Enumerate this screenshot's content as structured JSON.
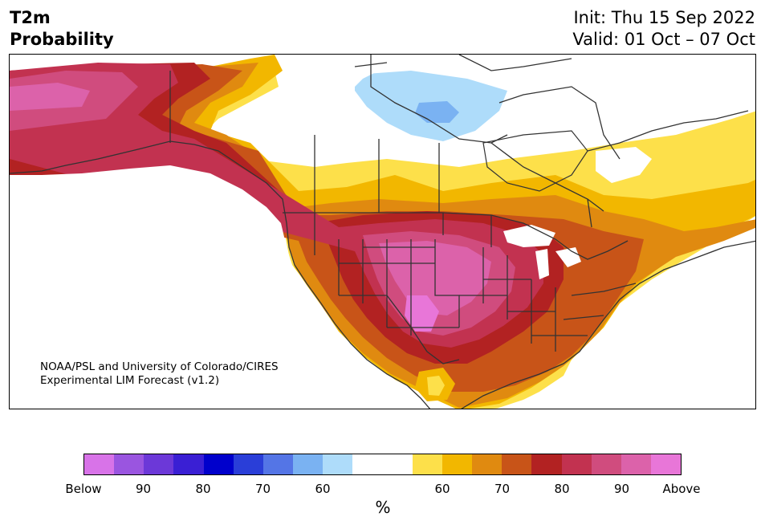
{
  "title": {
    "left_line1": "T2m",
    "left_line2": "Probability",
    "right_line1": "Init: Thu 15 Sep 2022",
    "right_line2": "Valid: 01 Oct – 07 Oct"
  },
  "credit": {
    "line1": "NOAA/PSL and University of Colorado/CIRES",
    "line2": "Experimental LIM Forecast (v1.2)"
  },
  "colorbar": {
    "label": "%",
    "colors": [
      "#d873e8",
      "#9a55e0",
      "#6c38d8",
      "#3a1fd4",
      "#0000cc",
      "#2a3ed8",
      "#5475e6",
      "#7ab2f2",
      "#aedcfa",
      "#ffffff",
      "#ffffff",
      "#fde04a",
      "#f2b700",
      "#e08a10",
      "#c85418",
      "#b22222",
      "#c23250",
      "#d04c7e",
      "#dc62aa",
      "#e876d8"
    ],
    "ticks": [
      "Below",
      "90",
      "80",
      "70",
      "60",
      "60",
      "70",
      "80",
      "90",
      "Above"
    ]
  },
  "legend_palette": {
    "white": "#ffffff",
    "light_blue": "#aedcfa",
    "blue": "#7ab2f2",
    "yellow": "#fde04a",
    "gold": "#f2b700",
    "orange": "#e08a10",
    "dark_orange": "#c85418",
    "red": "#b22222",
    "crimson": "#c23250",
    "rose": "#d04c7e",
    "pink": "#dc62aa",
    "magenta": "#e876d8",
    "border": "#333333"
  }
}
